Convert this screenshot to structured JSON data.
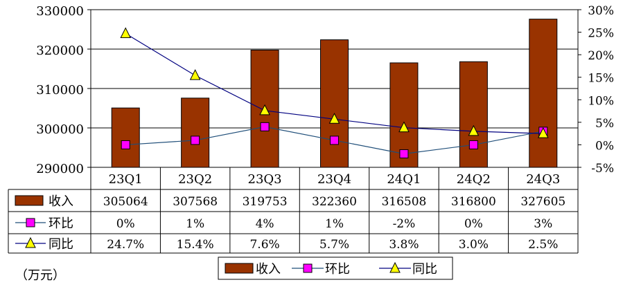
{
  "unit_label": "（万元）",
  "chart_data": {
    "type": "bar",
    "categories": [
      "23Q1",
      "23Q2",
      "23Q3",
      "23Q4",
      "24Q1",
      "24Q2",
      "24Q3"
    ],
    "left_axis": {
      "ylim": [
        290000,
        330000
      ],
      "ticks": [
        "290000",
        "300000",
        "310000",
        "320000",
        "330000"
      ],
      "tick_values": [
        290000,
        300000,
        310000,
        320000,
        330000
      ]
    },
    "right_axis": {
      "ylim": [
        -5,
        30
      ],
      "ticks": [
        "-5%",
        "0%",
        "5%",
        "10%",
        "15%",
        "20%",
        "25%",
        "30%"
      ],
      "tick_values": [
        -5,
        0,
        5,
        10,
        15,
        20,
        25,
        30
      ]
    },
    "series": [
      {
        "name": "收入",
        "type": "bar",
        "axis": "left",
        "color": "#993300",
        "values": [
          305064,
          307568,
          319753,
          322360,
          316508,
          316800,
          327605
        ],
        "labels": [
          "305064",
          "307568",
          "319753",
          "322360",
          "316508",
          "316800",
          "327605"
        ]
      },
      {
        "name": "环比",
        "type": "line",
        "axis": "right",
        "color": "#FF00FF",
        "line_color": "#1F4E79",
        "marker": "square",
        "values": [
          0,
          1,
          4,
          1,
          -2,
          0,
          3
        ],
        "labels": [
          "0%",
          "1%",
          "4%",
          "1%",
          "-2%",
          "0%",
          "3%"
        ]
      },
      {
        "name": "同比",
        "type": "line",
        "axis": "right",
        "color": "#FFFF00",
        "line_color": "#000080",
        "marker": "triangle",
        "values": [
          24.7,
          15.4,
          7.6,
          5.7,
          3.8,
          3.0,
          2.5
        ],
        "labels": [
          "24.7%",
          "15.4%",
          "7.6%",
          "5.7%",
          "3.8%",
          "3.0%",
          "2.5%"
        ]
      }
    ],
    "grid": true,
    "legend": "bottom"
  }
}
